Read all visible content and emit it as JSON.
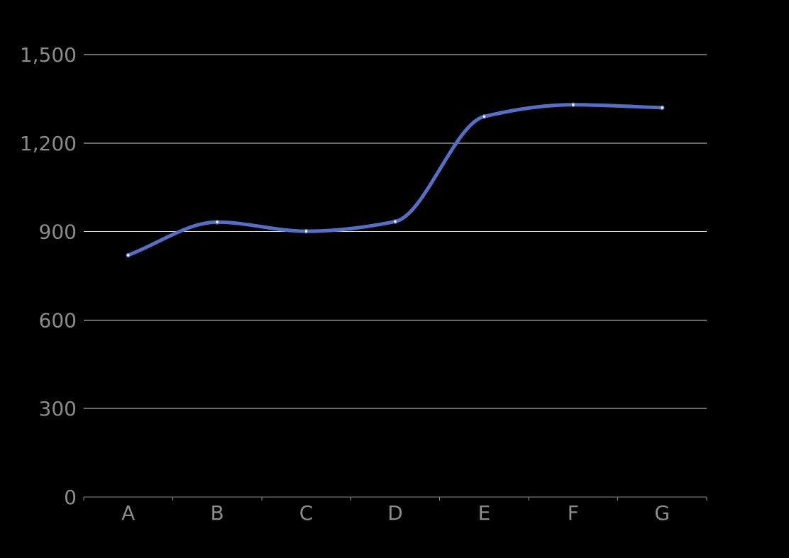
{
  "chart_data": {
    "type": "line",
    "smooth": true,
    "categories": [
      "A",
      "B",
      "C",
      "D",
      "E",
      "F",
      "G"
    ],
    "series": [
      {
        "values": [
          820,
          932,
          901,
          934,
          1290,
          1330,
          1320
        ]
      }
    ],
    "ylim": [
      0,
      1500
    ],
    "yticks": [
      0,
      300,
      600,
      900,
      1200,
      1500
    ],
    "ytick_labels": [
      "0",
      "300",
      "600",
      "900",
      "1,200",
      "1,500"
    ],
    "grid": true,
    "legend": "none"
  },
  "colors": {
    "background": "#000000",
    "line": "#5470c6",
    "point_fill": "#ffffff",
    "gridline": "#d9d9d9",
    "axis": "#8c8c8c",
    "label": "#8c8c8c"
  }
}
